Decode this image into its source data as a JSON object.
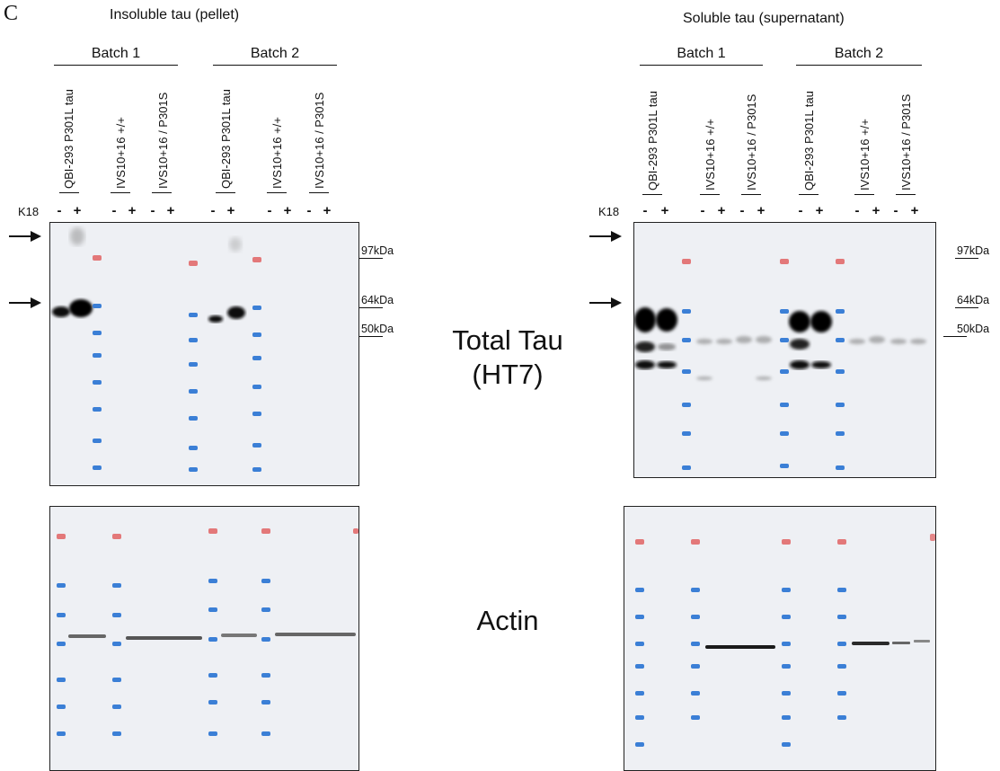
{
  "panel_letter": "C",
  "left": {
    "title": "Insoluble tau (pellet)",
    "batches": [
      "Batch 1",
      "Batch 2"
    ],
    "lanes": [
      "QBI-293 P301L tau",
      "IVS10+16 +/+",
      "IVS10+16 / P301S",
      "QBI-293 P301L tau",
      "IVS10+16 +/+",
      "IVS10+16 / P301S"
    ]
  },
  "right": {
    "title": "Soluble tau (supernatant)",
    "batches": [
      "Batch 1",
      "Batch 2"
    ],
    "lanes": [
      "QBI-293 P301L tau",
      "IVS10+16 +/+",
      "IVS10+16 / P301S",
      "QBI-293 P301L tau",
      "IVS10+16 +/+",
      "IVS10+16 / P301S"
    ]
  },
  "k18_label": "K18",
  "signs": [
    "-",
    "+"
  ],
  "mw_markers": [
    "97kDa",
    "64kDa",
    "50kDa"
  ],
  "labels": {
    "total_tau_line1": "Total Tau",
    "total_tau_line2": "(HT7)",
    "actin": "Actin"
  },
  "colors": {
    "ladder_red": "#e05a5a",
    "ladder_blue": "#3b7fd6",
    "band_dark": "#0a0a0a",
    "membrane": "#eef0f4"
  }
}
